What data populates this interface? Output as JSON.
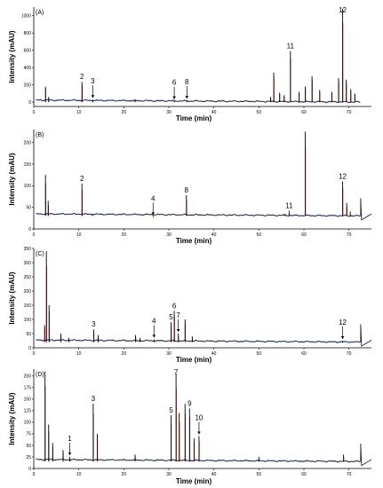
{
  "figure": {
    "x_label": "Time (min)",
    "y_label": "Intensity (mAU)"
  },
  "colors": {
    "trace_main": "#111111",
    "trace_red": "#c0392b",
    "trace_blue": "#3b5bdb"
  },
  "chart_data": [
    {
      "type": "line",
      "panel_label": "(A)",
      "xlabel": "Time (min)",
      "ylabel": "Intensity (mAU)",
      "xlim": [
        0,
        75
      ],
      "ylim": [
        -50,
        1100
      ],
      "x_ticks": [
        0,
        10,
        20,
        30,
        40,
        50,
        60,
        70
      ],
      "y_ticks": [
        0,
        200,
        400,
        600,
        800,
        1000
      ],
      "baseline": 0,
      "peaks": [
        {
          "t": 2.6,
          "h": 180
        },
        {
          "t": 3.3,
          "h": 60
        },
        {
          "t": 10.7,
          "h": 235
        },
        {
          "t": 13.1,
          "h": 30
        },
        {
          "t": 22.5,
          "h": 20
        },
        {
          "t": 31.2,
          "h": 15
        },
        {
          "t": 34.0,
          "h": 20
        },
        {
          "t": 52.6,
          "h": 60
        },
        {
          "t": 53.3,
          "h": 340
        },
        {
          "t": 54.6,
          "h": 110
        },
        {
          "t": 55.6,
          "h": 80
        },
        {
          "t": 57.0,
          "h": 590
        },
        {
          "t": 58.9,
          "h": 120
        },
        {
          "t": 60.3,
          "h": 180
        },
        {
          "t": 61.8,
          "h": 300
        },
        {
          "t": 63.5,
          "h": 140
        },
        {
          "t": 66.2,
          "h": 120
        },
        {
          "t": 67.7,
          "h": 280
        },
        {
          "t": 68.6,
          "h": 1080
        },
        {
          "t": 69.4,
          "h": 260
        },
        {
          "t": 70.4,
          "h": 150
        },
        {
          "t": 71.3,
          "h": 100
        }
      ],
      "annotations": [
        {
          "label": "2",
          "t": 10.7,
          "arrow": false,
          "h": 235
        },
        {
          "label": "3",
          "t": 13.1,
          "arrow": true,
          "h": 30
        },
        {
          "label": "6",
          "t": 31.2,
          "arrow": true,
          "h": 15
        },
        {
          "label": "8",
          "t": 34.0,
          "arrow": true,
          "h": 20
        },
        {
          "label": "11",
          "t": 57.0,
          "arrow": false,
          "h": 590
        },
        {
          "label": "12",
          "t": 68.6,
          "arrow": false,
          "h": 1080
        }
      ]
    },
    {
      "type": "line",
      "panel_label": "(B)",
      "xlabel": "Time (min)",
      "ylabel": "Intensity (mAU)",
      "xlim": [
        0,
        75
      ],
      "ylim": [
        0,
        230
      ],
      "x_ticks": [
        0,
        10,
        20,
        30,
        40,
        50,
        60,
        70
      ],
      "y_ticks": [
        0,
        50,
        100,
        150,
        200
      ],
      "baseline": 30,
      "peaks": [
        {
          "t": 2.6,
          "h": 125
        },
        {
          "t": 3.2,
          "h": 65
        },
        {
          "t": 10.7,
          "h": 105
        },
        {
          "t": 13.0,
          "h": 35
        },
        {
          "t": 26.5,
          "h": 28
        },
        {
          "t": 33.9,
          "h": 78
        },
        {
          "t": 55.8,
          "h": 35
        },
        {
          "t": 56.7,
          "h": 42
        },
        {
          "t": 60.3,
          "h": 225
        },
        {
          "t": 68.6,
          "h": 110
        },
        {
          "t": 69.5,
          "h": 60
        },
        {
          "t": 70.3,
          "h": 40
        }
      ],
      "annotations": [
        {
          "label": "2",
          "t": 10.7,
          "arrow": false,
          "h": 105
        },
        {
          "label": "4",
          "t": 26.5,
          "arrow": true,
          "h": 28
        },
        {
          "label": "8",
          "t": 33.9,
          "arrow": false,
          "h": 78
        },
        {
          "label": "11",
          "t": 56.7,
          "arrow": false,
          "h": 42
        },
        {
          "label": "12",
          "t": 68.6,
          "arrow": false,
          "h": 110
        }
      ]
    },
    {
      "type": "line",
      "panel_label": "(C)",
      "xlabel": "Time (min)",
      "ylabel": "Intensity (mAU)",
      "xlim": [
        0,
        75
      ],
      "ylim": [
        0,
        350
      ],
      "x_ticks": [
        0,
        10,
        20,
        30,
        40,
        50,
        60,
        70
      ],
      "y_ticks": [
        0,
        50,
        100,
        150,
        200,
        250,
        300,
        350
      ],
      "baseline": 20,
      "peaks": [
        {
          "t": 2.4,
          "h": 80
        },
        {
          "t": 2.8,
          "h": 340
        },
        {
          "t": 3.4,
          "h": 150
        },
        {
          "t": 6.0,
          "h": 50
        },
        {
          "t": 7.8,
          "h": 35
        },
        {
          "t": 13.3,
          "h": 65
        },
        {
          "t": 14.3,
          "h": 45
        },
        {
          "t": 22.6,
          "h": 45
        },
        {
          "t": 23.6,
          "h": 35
        },
        {
          "t": 26.7,
          "h": 30
        },
        {
          "t": 30.5,
          "h": 90
        },
        {
          "t": 31.2,
          "h": 130
        },
        {
          "t": 32.1,
          "h": 50
        },
        {
          "t": 33.6,
          "h": 100
        },
        {
          "t": 35.2,
          "h": 40
        },
        {
          "t": 68.6,
          "h": 25
        }
      ],
      "annotations": [
        {
          "label": "3",
          "t": 13.3,
          "arrow": false,
          "h": 65
        },
        {
          "label": "4",
          "t": 26.7,
          "arrow": true,
          "h": 30
        },
        {
          "label": "5",
          "t": 30.5,
          "arrow": false,
          "h": 90
        },
        {
          "label": "6",
          "t": 31.2,
          "arrow": false,
          "h": 130
        },
        {
          "label": "7",
          "t": 32.1,
          "arrow": true,
          "h": 50
        },
        {
          "label": "12",
          "t": 68.6,
          "arrow": true,
          "h": 25
        }
      ]
    },
    {
      "type": "line",
      "panel_label": "(D)",
      "xlabel": "Time (min)",
      "ylabel": "Intensity (mAU)",
      "xlim": [
        0,
        75
      ],
      "ylim": [
        0,
        215
      ],
      "x_ticks": [
        0,
        10,
        20,
        30,
        40,
        50,
        60,
        70
      ],
      "y_ticks": [
        0,
        25,
        50,
        75,
        100,
        125,
        150,
        175,
        200
      ],
      "baseline": 15,
      "peaks": [
        {
          "t": 2.5,
          "h": 210
        },
        {
          "t": 3.3,
          "h": 95
        },
        {
          "t": 4.2,
          "h": 55
        },
        {
          "t": 6.5,
          "h": 40
        },
        {
          "t": 8.0,
          "h": 25
        },
        {
          "t": 13.2,
          "h": 140
        },
        {
          "t": 14.1,
          "h": 75
        },
        {
          "t": 22.5,
          "h": 30
        },
        {
          "t": 30.5,
          "h": 115
        },
        {
          "t": 31.6,
          "h": 205
        },
        {
          "t": 32.3,
          "h": 120
        },
        {
          "t": 33.6,
          "h": 140
        },
        {
          "t": 34.6,
          "h": 130
        },
        {
          "t": 35.6,
          "h": 65
        },
        {
          "t": 36.7,
          "h": 70
        },
        {
          "t": 50.0,
          "h": 25
        },
        {
          "t": 68.8,
          "h": 30
        }
      ],
      "annotations": [
        {
          "label": "1",
          "t": 8.0,
          "arrow": true,
          "h": 25
        },
        {
          "label": "3",
          "t": 13.2,
          "arrow": false,
          "h": 140
        },
        {
          "label": "5",
          "t": 30.5,
          "arrow": false,
          "h": 115
        },
        {
          "label": "7",
          "t": 31.6,
          "arrow": false,
          "h": 205
        },
        {
          "label": "9",
          "t": 34.6,
          "arrow": false,
          "h": 130
        },
        {
          "label": "10",
          "t": 36.7,
          "arrow": true,
          "h": 70
        }
      ]
    }
  ]
}
